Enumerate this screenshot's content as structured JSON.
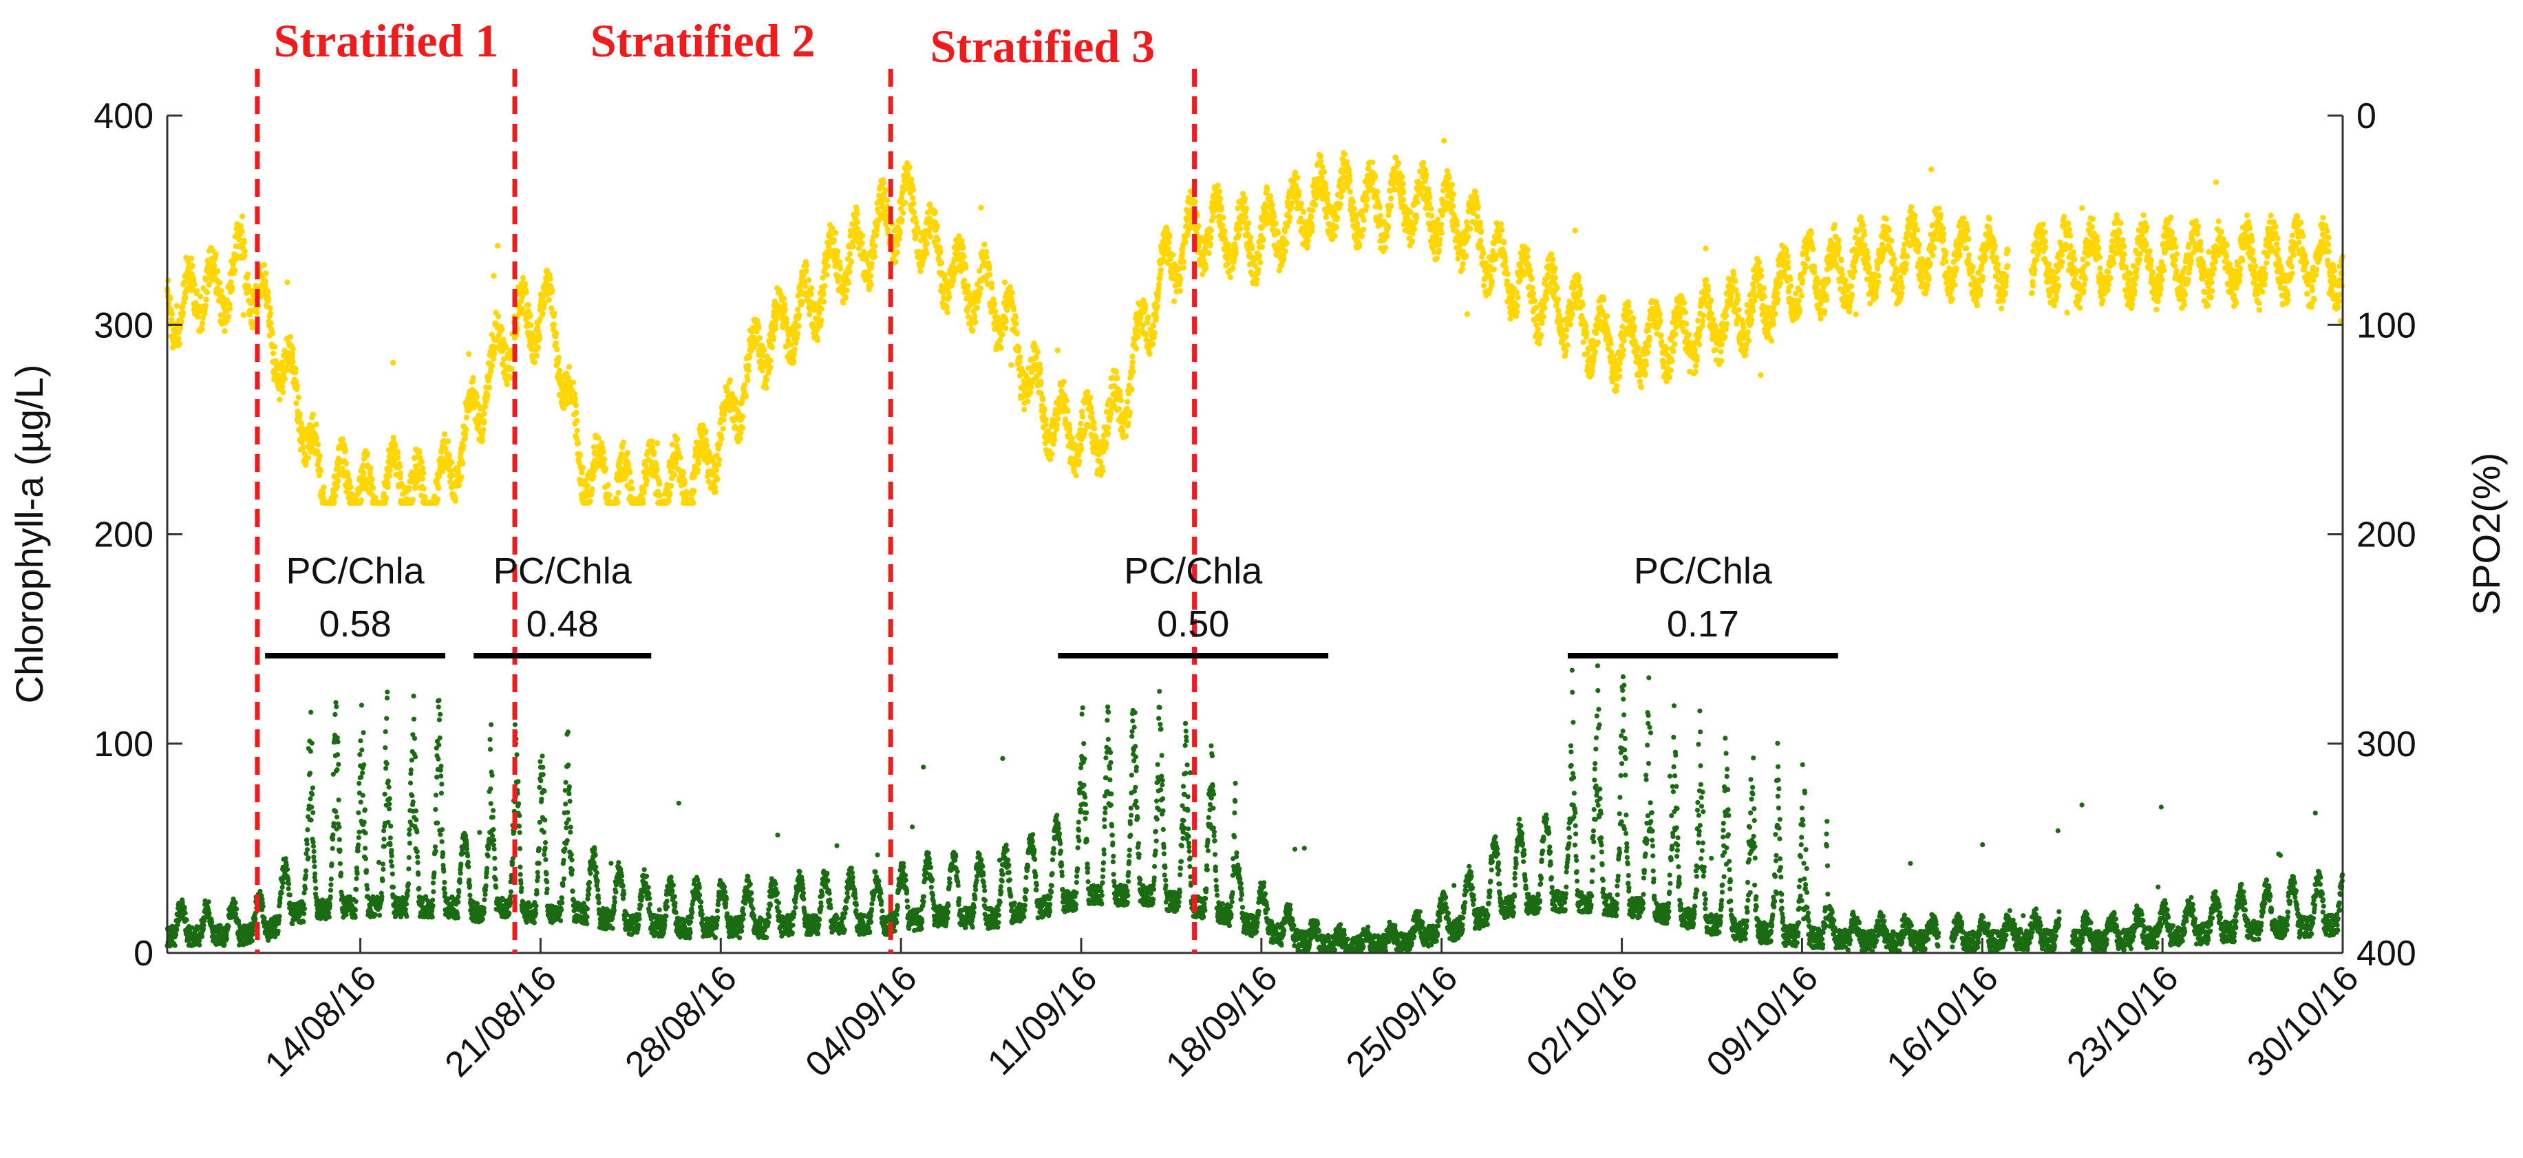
{
  "chart_data": {
    "type": "scatter",
    "title": "",
    "ylabel_left": "Chlorophyll-a (µg/L)",
    "ylabel_right": "SPO2(%)",
    "x_tick_labels": [
      "14/08/16",
      "21/08/16",
      "28/08/16",
      "04/09/16",
      "11/09/16",
      "18/09/16",
      "25/09/16",
      "02/10/16",
      "09/10/16",
      "16/10/16",
      "23/10/16",
      "30/10/16"
    ],
    "x_range_days": [
      0,
      84.5
    ],
    "x_first_tick_day": 7.5,
    "x_tick_step_days": 7,
    "left_axis": {
      "range": [
        0,
        400
      ],
      "ticks": [
        "0",
        "100",
        "200",
        "300",
        "400"
      ]
    },
    "right_axis": {
      "range": [
        400,
        0
      ],
      "inverted": true,
      "ticks": [
        "0",
        "100",
        "200",
        "300",
        "400"
      ]
    },
    "series": [
      {
        "name": "SPO2",
        "axis": "right",
        "color": "#ffd600",
        "anchors_day_value": [
          [
            0,
            80
          ],
          [
            0.5,
            100
          ],
          [
            1,
            80
          ],
          [
            2,
            85
          ],
          [
            3,
            70
          ],
          [
            3.5,
            85
          ],
          [
            4,
            100
          ],
          [
            4.5,
            125
          ],
          [
            5,
            130
          ],
          [
            6,
            180
          ],
          [
            7,
            175
          ],
          [
            8,
            185
          ],
          [
            9,
            170
          ],
          [
            10,
            185
          ],
          [
            11,
            170
          ],
          [
            12,
            140
          ],
          [
            13,
            110
          ],
          [
            14,
            95
          ],
          [
            15,
            95
          ],
          [
            16,
            165
          ],
          [
            17,
            175
          ],
          [
            18,
            180
          ],
          [
            19,
            175
          ],
          [
            20,
            175
          ],
          [
            21,
            165
          ],
          [
            22,
            140
          ],
          [
            23,
            110
          ],
          [
            24,
            100
          ],
          [
            25,
            90
          ],
          [
            26,
            70
          ],
          [
            27,
            65
          ],
          [
            28,
            50
          ],
          [
            28.5,
            45
          ],
          [
            29,
            45
          ],
          [
            30,
            70
          ],
          [
            31,
            80
          ],
          [
            32,
            85
          ],
          [
            33,
            110
          ],
          [
            34,
            140
          ],
          [
            35,
            150
          ],
          [
            36,
            155
          ],
          [
            37,
            140
          ],
          [
            38,
            100
          ],
          [
            38.5,
            80
          ],
          [
            39,
            70
          ],
          [
            40,
            55
          ],
          [
            41,
            55
          ],
          [
            42,
            60
          ],
          [
            43,
            55
          ],
          [
            44,
            45
          ],
          [
            45,
            40
          ],
          [
            46,
            40
          ],
          [
            47,
            45
          ],
          [
            48,
            40
          ],
          [
            49,
            45
          ],
          [
            50,
            50
          ],
          [
            51,
            60
          ],
          [
            52,
            75
          ],
          [
            53,
            85
          ],
          [
            54,
            90
          ],
          [
            55,
            100
          ],
          [
            56,
            110
          ],
          [
            57,
            110
          ],
          [
            58,
            105
          ],
          [
            59,
            105
          ],
          [
            60,
            100
          ],
          [
            61,
            95
          ],
          [
            62,
            90
          ],
          [
            63,
            80
          ],
          [
            64,
            75
          ],
          [
            65,
            75
          ],
          [
            66,
            70
          ],
          [
            67,
            70
          ],
          [
            68,
            65
          ],
          [
            69,
            65
          ],
          [
            70,
            70
          ],
          [
            71,
            70
          ],
          [
            72,
            70
          ],
          [
            73,
            70
          ],
          [
            74,
            70
          ],
          [
            75,
            70
          ],
          [
            76,
            70
          ],
          [
            77,
            70
          ],
          [
            78,
            70
          ],
          [
            79,
            70
          ],
          [
            80,
            70
          ],
          [
            81,
            70
          ],
          [
            82,
            70
          ],
          [
            83,
            70
          ],
          [
            84,
            70
          ],
          [
            84.5,
            70
          ]
        ],
        "gaps_days": [
          [
            71.5,
            72.4
          ]
        ],
        "noise_amplitude": 18,
        "diurnal_amplitude": 14
      },
      {
        "name": "Chlorophyll-a",
        "axis": "left",
        "color": "#1a6b12",
        "anchors_day_value": [
          [
            0,
            15
          ],
          [
            3,
            15
          ],
          [
            4,
            20
          ],
          [
            5,
            35
          ],
          [
            7,
            40
          ],
          [
            9,
            40
          ],
          [
            11,
            40
          ],
          [
            12,
            35
          ],
          [
            13,
            40
          ],
          [
            14,
            35
          ],
          [
            16,
            35
          ],
          [
            18,
            25
          ],
          [
            20,
            22
          ],
          [
            23,
            22
          ],
          [
            25,
            25
          ],
          [
            28,
            25
          ],
          [
            30,
            32
          ],
          [
            32,
            30
          ],
          [
            34,
            40
          ],
          [
            36,
            50
          ],
          [
            38,
            50
          ],
          [
            40,
            40
          ],
          [
            41,
            35
          ],
          [
            42,
            25
          ],
          [
            44,
            10
          ],
          [
            46,
            5
          ],
          [
            48,
            8
          ],
          [
            50,
            20
          ],
          [
            52,
            40
          ],
          [
            54,
            45
          ],
          [
            57,
            40
          ],
          [
            59,
            30
          ],
          [
            61,
            20
          ],
          [
            63,
            15
          ],
          [
            66,
            10
          ],
          [
            69,
            10
          ],
          [
            71,
            10
          ],
          [
            72,
            12
          ],
          [
            75,
            10
          ],
          [
            78,
            15
          ],
          [
            81,
            20
          ],
          [
            84.5,
            25
          ]
        ],
        "gaps_days": [
          [
            68.8,
            69.3
          ],
          [
            73.5,
            74.0
          ]
        ],
        "spike_windows_days": [
          [
            5,
            11,
            70
          ],
          [
            12.5,
            16,
            60
          ],
          [
            35,
            41.5,
            55
          ],
          [
            54.5,
            64.5,
            80
          ]
        ],
        "noise_amplitude": 10
      }
    ],
    "stratified_periods": [
      {
        "label": "Stratified 1",
        "start_day": 3.5,
        "end_day": 13.5
      },
      {
        "label": "Stratified 2",
        "start_day": 13.5,
        "end_day": 28.1
      },
      {
        "label": "Stratified 3",
        "start_day": 28.1,
        "end_day": 39.9
      }
    ],
    "pc_chla_ratios": [
      {
        "label": "PC/Chla",
        "value": "0.58",
        "start_day": 3.8,
        "end_day": 10.8
      },
      {
        "label": "PC/Chla",
        "value": "0.48",
        "start_day": 11.9,
        "end_day": 18.8
      },
      {
        "label": "PC/Chla",
        "value": "0.50",
        "start_day": 34.6,
        "end_day": 45.1
      },
      {
        "label": "PC/Chla",
        "value": "0.17",
        "start_day": 54.4,
        "end_day": 64.9
      }
    ],
    "ratio_line_level": 142
  }
}
